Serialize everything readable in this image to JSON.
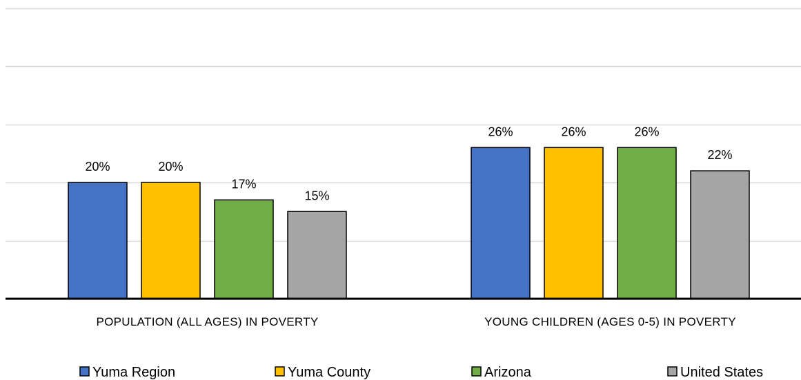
{
  "chart_data": {
    "type": "bar",
    "categories": [
      "POPULATION (ALL AGES) IN POVERTY",
      "YOUNG CHILDREN (AGES 0-5) IN POVERTY"
    ],
    "series": [
      {
        "name": "Yuma Region",
        "values": [
          20,
          26
        ],
        "labels": [
          "20%",
          "26%"
        ],
        "color": "#4472C4"
      },
      {
        "name": "Yuma County",
        "values": [
          20,
          26
        ],
        "labels": [
          "20%",
          "26%"
        ],
        "color": "#FFC000"
      },
      {
        "name": "Arizona",
        "values": [
          17,
          26
        ],
        "labels": [
          "17%",
          "26%"
        ],
        "color": "#70AD47"
      },
      {
        "name": "United States",
        "values": [
          15,
          22
        ],
        "labels": [
          "15%",
          "22%"
        ],
        "color": "#A5A5A5"
      }
    ],
    "ylim": [
      0,
      50
    ],
    "grid": true,
    "legend_position": "bottom",
    "title": "",
    "xlabel": "",
    "ylabel": ""
  }
}
